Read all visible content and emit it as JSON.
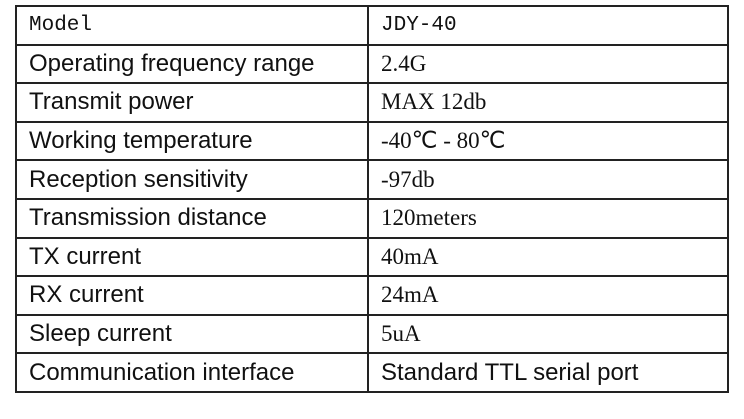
{
  "table": {
    "rows": [
      [
        "Model",
        "JDY-40"
      ],
      [
        "Operating frequency range",
        "2.4G"
      ],
      [
        "Transmit power",
        "MAX 12db"
      ],
      [
        "Working temperature",
        "-40℃ - 80℃"
      ],
      [
        "Reception sensitivity",
        "-97db"
      ],
      [
        "Transmission distance",
        "120meters"
      ],
      [
        "TX current",
        "40mA"
      ],
      [
        "RX current",
        "24mA"
      ],
      [
        "Sleep current",
        "5uA"
      ],
      [
        "Communication interface",
        "Standard TTL serial port"
      ]
    ]
  }
}
